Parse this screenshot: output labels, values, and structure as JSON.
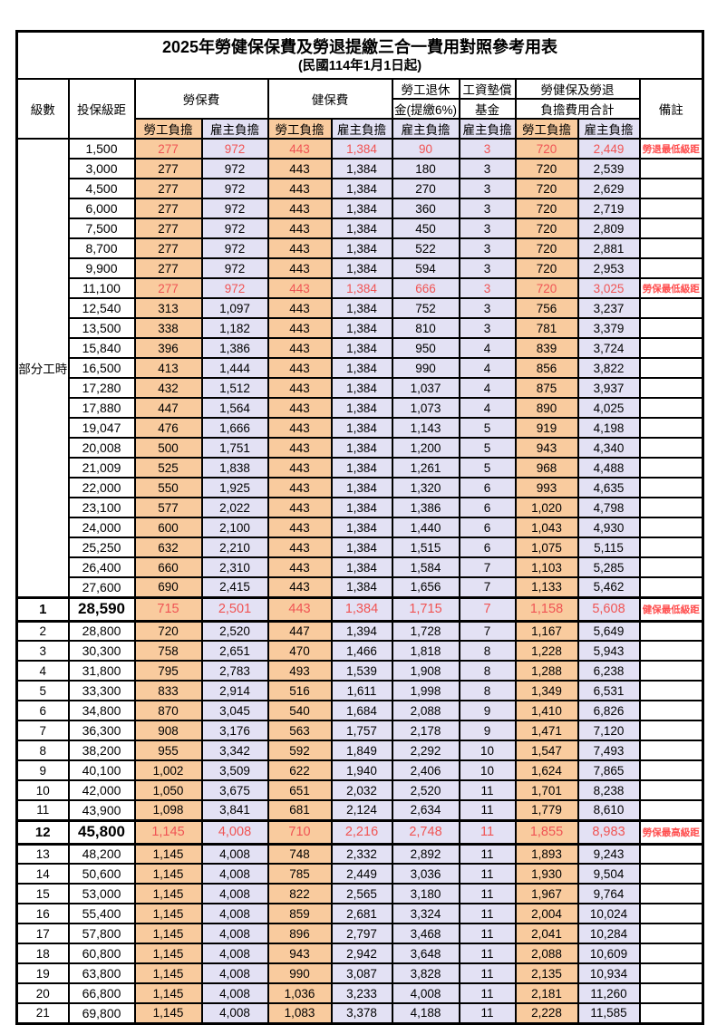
{
  "page": {
    "title": "2025年勞健保保費及勞退提繳三合一費用對照參考用表",
    "subtitle": "(民國114年1月1日起)"
  },
  "header": {
    "level": "級數",
    "bracket": "投保級距",
    "labor_fee": "勞保費",
    "health_fee": "健保費",
    "pension_line1": "勞工退休",
    "pension_line2": "金(提繳6%)",
    "wage_fund_line1": "工資墊償",
    "wage_fund_line2": "基金",
    "total_line1": "勞健保及勞退",
    "total_line2": "負擔費用合計",
    "note": "備註",
    "employee_share": "勞工負擔",
    "employer_share": "雇主負擔"
  },
  "columns": [
    "級數",
    "投保級距",
    "勞保費-勞工負擔",
    "勞保費-雇主負擔",
    "健保費-勞工負擔",
    "健保費-雇主負擔",
    "勞工退休金(提繳6%)-雇主負擔",
    "工資墊償基金-雇主負擔",
    "勞健保及勞退負擔費用合計-勞工負擔",
    "勞健保及勞退負擔費用合計-雇主負擔",
    "備註"
  ],
  "group_label": "部分工時",
  "group_rows": 23,
  "colors": {
    "employee_bg": "#F9CB9E",
    "employer_bg": "#E3E1F4",
    "value_red": "#F05454",
    "note_red": "#FF4D4D",
    "grid": "#000000"
  },
  "rows": [
    {
      "level": "",
      "bracket": "1,500",
      "values": [
        "277",
        "972",
        "443",
        "1,384",
        "90",
        "3",
        "720",
        "2,449"
      ],
      "note": "勞退最低級距",
      "red": true,
      "big": false
    },
    {
      "level": "",
      "bracket": "3,000",
      "values": [
        "277",
        "972",
        "443",
        "1,384",
        "180",
        "3",
        "720",
        "2,539"
      ],
      "note": "",
      "red": false,
      "big": false
    },
    {
      "level": "",
      "bracket": "4,500",
      "values": [
        "277",
        "972",
        "443",
        "1,384",
        "270",
        "3",
        "720",
        "2,629"
      ],
      "note": "",
      "red": false,
      "big": false
    },
    {
      "level": "",
      "bracket": "6,000",
      "values": [
        "277",
        "972",
        "443",
        "1,384",
        "360",
        "3",
        "720",
        "2,719"
      ],
      "note": "",
      "red": false,
      "big": false
    },
    {
      "level": "",
      "bracket": "7,500",
      "values": [
        "277",
        "972",
        "443",
        "1,384",
        "450",
        "3",
        "720",
        "2,809"
      ],
      "note": "",
      "red": false,
      "big": false
    },
    {
      "level": "",
      "bracket": "8,700",
      "values": [
        "277",
        "972",
        "443",
        "1,384",
        "522",
        "3",
        "720",
        "2,881"
      ],
      "note": "",
      "red": false,
      "big": false
    },
    {
      "level": "",
      "bracket": "9,900",
      "values": [
        "277",
        "972",
        "443",
        "1,384",
        "594",
        "3",
        "720",
        "2,953"
      ],
      "note": "",
      "red": false,
      "big": false
    },
    {
      "level": "",
      "bracket": "11,100",
      "values": [
        "277",
        "972",
        "443",
        "1,384",
        "666",
        "3",
        "720",
        "3,025"
      ],
      "note": "勞保最低級距",
      "red": true,
      "big": false
    },
    {
      "level": "",
      "bracket": "12,540",
      "values": [
        "313",
        "1,097",
        "443",
        "1,384",
        "752",
        "3",
        "756",
        "3,237"
      ],
      "note": "",
      "red": false,
      "big": false
    },
    {
      "level": "",
      "bracket": "13,500",
      "values": [
        "338",
        "1,182",
        "443",
        "1,384",
        "810",
        "3",
        "781",
        "3,379"
      ],
      "note": "",
      "red": false,
      "big": false
    },
    {
      "level": "",
      "bracket": "15,840",
      "values": [
        "396",
        "1,386",
        "443",
        "1,384",
        "950",
        "4",
        "839",
        "3,724"
      ],
      "note": "",
      "red": false,
      "big": false
    },
    {
      "level": "",
      "bracket": "16,500",
      "values": [
        "413",
        "1,444",
        "443",
        "1,384",
        "990",
        "4",
        "856",
        "3,822"
      ],
      "note": "",
      "red": false,
      "big": false
    },
    {
      "level": "",
      "bracket": "17,280",
      "values": [
        "432",
        "1,512",
        "443",
        "1,384",
        "1,037",
        "4",
        "875",
        "3,937"
      ],
      "note": "",
      "red": false,
      "big": false
    },
    {
      "level": "",
      "bracket": "17,880",
      "values": [
        "447",
        "1,564",
        "443",
        "1,384",
        "1,073",
        "4",
        "890",
        "4,025"
      ],
      "note": "",
      "red": false,
      "big": false
    },
    {
      "level": "",
      "bracket": "19,047",
      "values": [
        "476",
        "1,666",
        "443",
        "1,384",
        "1,143",
        "5",
        "919",
        "4,198"
      ],
      "note": "",
      "red": false,
      "big": false
    },
    {
      "level": "",
      "bracket": "20,008",
      "values": [
        "500",
        "1,751",
        "443",
        "1,384",
        "1,200",
        "5",
        "943",
        "4,340"
      ],
      "note": "",
      "red": false,
      "big": false
    },
    {
      "level": "",
      "bracket": "21,009",
      "values": [
        "525",
        "1,838",
        "443",
        "1,384",
        "1,261",
        "5",
        "968",
        "4,488"
      ],
      "note": "",
      "red": false,
      "big": false
    },
    {
      "level": "",
      "bracket": "22,000",
      "values": [
        "550",
        "1,925",
        "443",
        "1,384",
        "1,320",
        "6",
        "993",
        "4,635"
      ],
      "note": "",
      "red": false,
      "big": false
    },
    {
      "level": "",
      "bracket": "23,100",
      "values": [
        "577",
        "2,022",
        "443",
        "1,384",
        "1,386",
        "6",
        "1,020",
        "4,798"
      ],
      "note": "",
      "red": false,
      "big": false
    },
    {
      "level": "",
      "bracket": "24,000",
      "values": [
        "600",
        "2,100",
        "443",
        "1,384",
        "1,440",
        "6",
        "1,043",
        "4,930"
      ],
      "note": "",
      "red": false,
      "big": false
    },
    {
      "level": "",
      "bracket": "25,250",
      "values": [
        "632",
        "2,210",
        "443",
        "1,384",
        "1,515",
        "6",
        "1,075",
        "5,115"
      ],
      "note": "",
      "red": false,
      "big": false
    },
    {
      "level": "",
      "bracket": "26,400",
      "values": [
        "660",
        "2,310",
        "443",
        "1,384",
        "1,584",
        "7",
        "1,103",
        "5,285"
      ],
      "note": "",
      "red": false,
      "big": false
    },
    {
      "level": "",
      "bracket": "27,600",
      "values": [
        "690",
        "2,415",
        "443",
        "1,384",
        "1,656",
        "7",
        "1,133",
        "5,462"
      ],
      "note": "",
      "red": false,
      "big": false
    },
    {
      "level": "1",
      "bracket": "28,590",
      "values": [
        "715",
        "2,501",
        "443",
        "1,384",
        "1,715",
        "7",
        "1,158",
        "5,608"
      ],
      "note": "健保最低級距",
      "red": true,
      "big": true
    },
    {
      "level": "2",
      "bracket": "28,800",
      "values": [
        "720",
        "2,520",
        "447",
        "1,394",
        "1,728",
        "7",
        "1,167",
        "5,649"
      ],
      "note": "",
      "red": false,
      "big": false
    },
    {
      "level": "3",
      "bracket": "30,300",
      "values": [
        "758",
        "2,651",
        "470",
        "1,466",
        "1,818",
        "8",
        "1,228",
        "5,943"
      ],
      "note": "",
      "red": false,
      "big": false
    },
    {
      "level": "4",
      "bracket": "31,800",
      "values": [
        "795",
        "2,783",
        "493",
        "1,539",
        "1,908",
        "8",
        "1,288",
        "6,238"
      ],
      "note": "",
      "red": false,
      "big": false
    },
    {
      "level": "5",
      "bracket": "33,300",
      "values": [
        "833",
        "2,914",
        "516",
        "1,611",
        "1,998",
        "8",
        "1,349",
        "6,531"
      ],
      "note": "",
      "red": false,
      "big": false
    },
    {
      "level": "6",
      "bracket": "34,800",
      "values": [
        "870",
        "3,045",
        "540",
        "1,684",
        "2,088",
        "9",
        "1,410",
        "6,826"
      ],
      "note": "",
      "red": false,
      "big": false
    },
    {
      "level": "7",
      "bracket": "36,300",
      "values": [
        "908",
        "3,176",
        "563",
        "1,757",
        "2,178",
        "9",
        "1,471",
        "7,120"
      ],
      "note": "",
      "red": false,
      "big": false
    },
    {
      "level": "8",
      "bracket": "38,200",
      "values": [
        "955",
        "3,342",
        "592",
        "1,849",
        "2,292",
        "10",
        "1,547",
        "7,493"
      ],
      "note": "",
      "red": false,
      "big": false
    },
    {
      "level": "9",
      "bracket": "40,100",
      "values": [
        "1,002",
        "3,509",
        "622",
        "1,940",
        "2,406",
        "10",
        "1,624",
        "7,865"
      ],
      "note": "",
      "red": false,
      "big": false
    },
    {
      "level": "10",
      "bracket": "42,000",
      "values": [
        "1,050",
        "3,675",
        "651",
        "2,032",
        "2,520",
        "11",
        "1,701",
        "8,238"
      ],
      "note": "",
      "red": false,
      "big": false
    },
    {
      "level": "11",
      "bracket": "43,900",
      "values": [
        "1,098",
        "3,841",
        "681",
        "2,124",
        "2,634",
        "11",
        "1,779",
        "8,610"
      ],
      "note": "",
      "red": false,
      "big": false
    },
    {
      "level": "12",
      "bracket": "45,800",
      "values": [
        "1,145",
        "4,008",
        "710",
        "2,216",
        "2,748",
        "11",
        "1,855",
        "8,983"
      ],
      "note": "勞保最高級距",
      "red": true,
      "big": true
    },
    {
      "level": "13",
      "bracket": "48,200",
      "values": [
        "1,145",
        "4,008",
        "748",
        "2,332",
        "2,892",
        "11",
        "1,893",
        "9,243"
      ],
      "note": "",
      "red": false,
      "big": false
    },
    {
      "level": "14",
      "bracket": "50,600",
      "values": [
        "1,145",
        "4,008",
        "785",
        "2,449",
        "3,036",
        "11",
        "1,930",
        "9,504"
      ],
      "note": "",
      "red": false,
      "big": false
    },
    {
      "level": "15",
      "bracket": "53,000",
      "values": [
        "1,145",
        "4,008",
        "822",
        "2,565",
        "3,180",
        "11",
        "1,967",
        "9,764"
      ],
      "note": "",
      "red": false,
      "big": false
    },
    {
      "level": "16",
      "bracket": "55,400",
      "values": [
        "1,145",
        "4,008",
        "859",
        "2,681",
        "3,324",
        "11",
        "2,004",
        "10,024"
      ],
      "note": "",
      "red": false,
      "big": false
    },
    {
      "level": "17",
      "bracket": "57,800",
      "values": [
        "1,145",
        "4,008",
        "896",
        "2,797",
        "3,468",
        "11",
        "2,041",
        "10,284"
      ],
      "note": "",
      "red": false,
      "big": false
    },
    {
      "level": "18",
      "bracket": "60,800",
      "values": [
        "1,145",
        "4,008",
        "943",
        "2,942",
        "3,648",
        "11",
        "2,088",
        "10,609"
      ],
      "note": "",
      "red": false,
      "big": false
    },
    {
      "level": "19",
      "bracket": "63,800",
      "values": [
        "1,145",
        "4,008",
        "990",
        "3,087",
        "3,828",
        "11",
        "2,135",
        "10,934"
      ],
      "note": "",
      "red": false,
      "big": false
    },
    {
      "level": "20",
      "bracket": "66,800",
      "values": [
        "1,145",
        "4,008",
        "1,036",
        "3,233",
        "4,008",
        "11",
        "2,181",
        "11,260"
      ],
      "note": "",
      "red": false,
      "big": false
    },
    {
      "level": "21",
      "bracket": "69,800",
      "values": [
        "1,145",
        "4,008",
        "1,083",
        "3,378",
        "4,188",
        "11",
        "2,228",
        "11,585"
      ],
      "note": "",
      "red": false,
      "big": false
    }
  ]
}
